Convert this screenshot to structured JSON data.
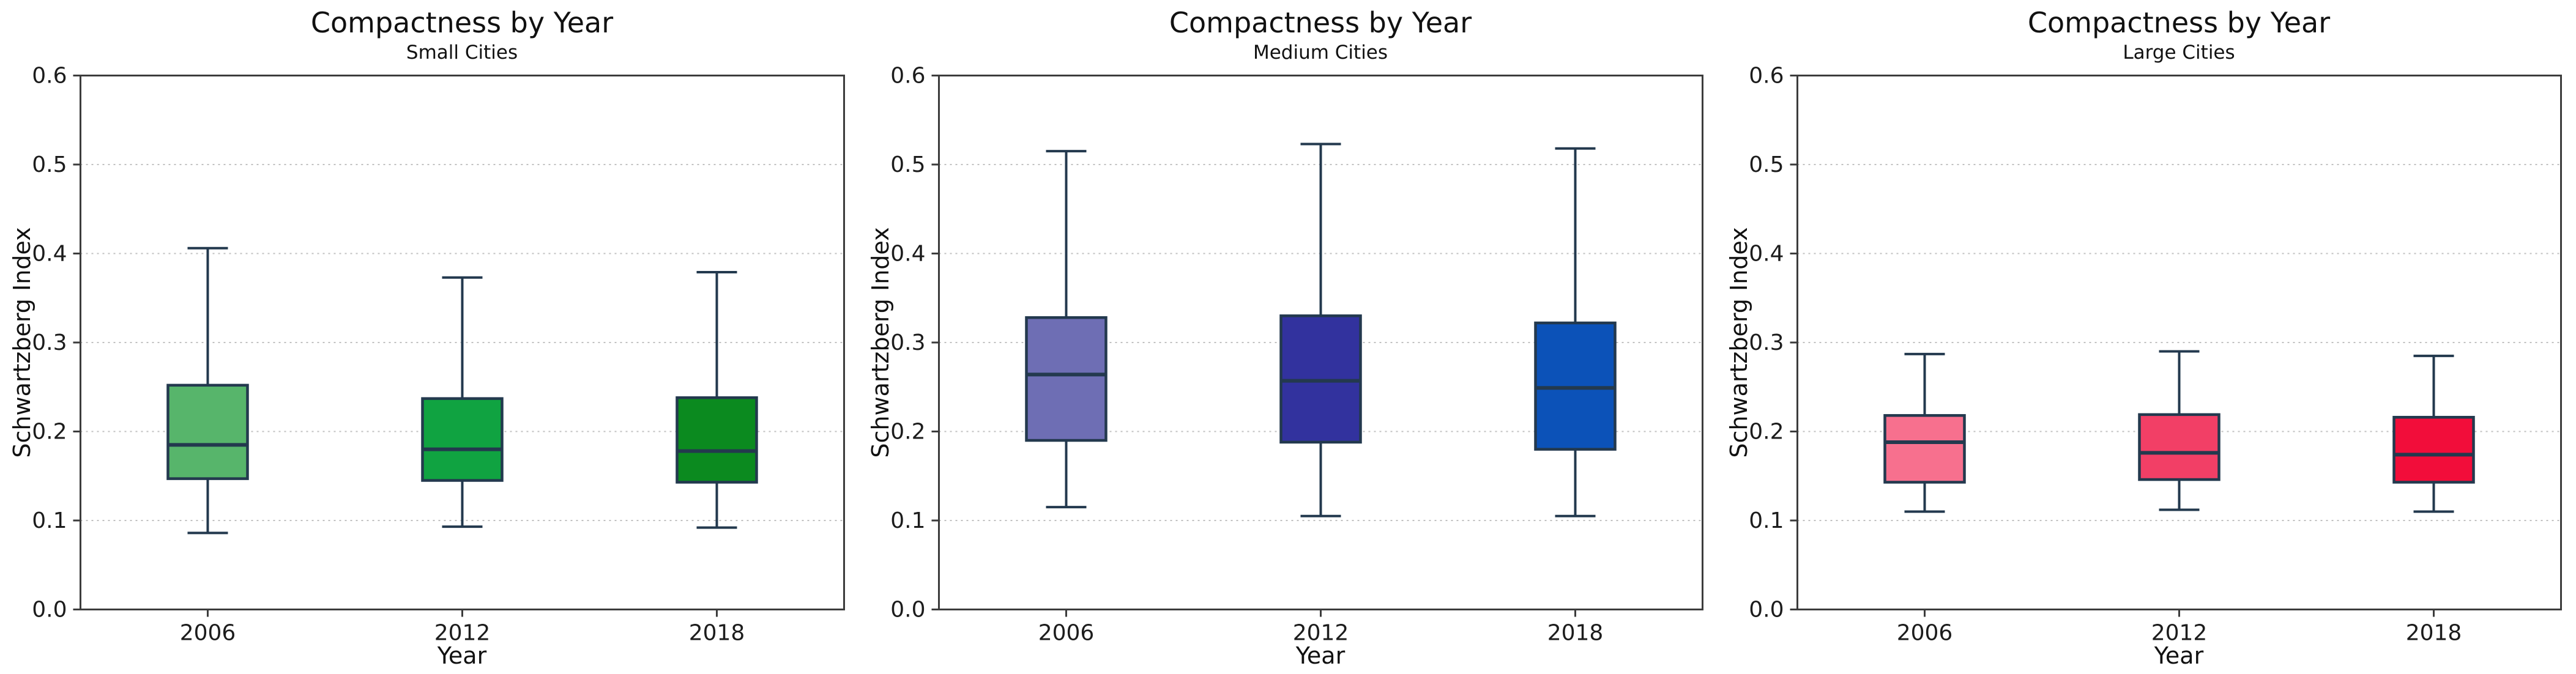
{
  "figure": {
    "background_color": "#ffffff"
  },
  "style": {
    "box_edge_color": "#23394e",
    "median_color": "#23394e",
    "whisker_color": "#23394e",
    "grid_color": "#c0c0c0",
    "axis_color": "#3c3c3c",
    "tick_text_color": "#1c1c1c"
  },
  "chart_data": [
    {
      "type": "boxplot",
      "title": "Compactness by Year",
      "subtitle": "Small Cities",
      "xlabel": "Year",
      "ylabel": "Schwartzberg Index",
      "ylim": [
        0.0,
        0.6
      ],
      "yticks": [
        0.0,
        0.1,
        0.2,
        0.3,
        0.4,
        0.5,
        0.6
      ],
      "grid": "horizontal-dotted",
      "categories": [
        "2006",
        "2012",
        "2018"
      ],
      "series": [
        {
          "category": "2006",
          "whisker_low": 0.086,
          "q1": 0.147,
          "median": 0.185,
          "q3": 0.252,
          "whisker_high": 0.406,
          "fill_color": "#57b56b"
        },
        {
          "category": "2012",
          "whisker_low": 0.093,
          "q1": 0.145,
          "median": 0.18,
          "q3": 0.237,
          "whisker_high": 0.373,
          "fill_color": "#10a341"
        },
        {
          "category": "2018",
          "whisker_low": 0.092,
          "q1": 0.143,
          "median": 0.178,
          "q3": 0.238,
          "whisker_high": 0.379,
          "fill_color": "#0b8a1f"
        }
      ]
    },
    {
      "type": "boxplot",
      "title": "Compactness by Year",
      "subtitle": "Medium Cities",
      "xlabel": "Year",
      "ylabel": "Schwartzberg Index",
      "ylim": [
        0.0,
        0.6
      ],
      "yticks": [
        0.0,
        0.1,
        0.2,
        0.3,
        0.4,
        0.5,
        0.6
      ],
      "grid": "horizontal-dotted",
      "categories": [
        "2006",
        "2012",
        "2018"
      ],
      "series": [
        {
          "category": "2006",
          "whisker_low": 0.115,
          "q1": 0.19,
          "median": 0.264,
          "q3": 0.328,
          "whisker_high": 0.515,
          "fill_color": "#6e6eb4"
        },
        {
          "category": "2012",
          "whisker_low": 0.105,
          "q1": 0.188,
          "median": 0.257,
          "q3": 0.33,
          "whisker_high": 0.523,
          "fill_color": "#32329e"
        },
        {
          "category": "2018",
          "whisker_low": 0.105,
          "q1": 0.18,
          "median": 0.249,
          "q3": 0.322,
          "whisker_high": 0.518,
          "fill_color": "#0c52b8"
        }
      ]
    },
    {
      "type": "boxplot",
      "title": "Compactness by Year",
      "subtitle": "Large Cities",
      "xlabel": "Year",
      "ylabel": "Schwartzberg Index",
      "ylim": [
        0.0,
        0.6
      ],
      "yticks": [
        0.0,
        0.1,
        0.2,
        0.3,
        0.4,
        0.5,
        0.6
      ],
      "grid": "horizontal-dotted",
      "categories": [
        "2006",
        "2012",
        "2018"
      ],
      "series": [
        {
          "category": "2006",
          "whisker_low": 0.11,
          "q1": 0.143,
          "median": 0.188,
          "q3": 0.218,
          "whisker_high": 0.287,
          "fill_color": "#f7708e"
        },
        {
          "category": "2012",
          "whisker_low": 0.112,
          "q1": 0.146,
          "median": 0.176,
          "q3": 0.219,
          "whisker_high": 0.29,
          "fill_color": "#f23f66"
        },
        {
          "category": "2018",
          "whisker_low": 0.11,
          "q1": 0.143,
          "median": 0.174,
          "q3": 0.216,
          "whisker_high": 0.285,
          "fill_color": "#f20d3a"
        }
      ]
    }
  ]
}
